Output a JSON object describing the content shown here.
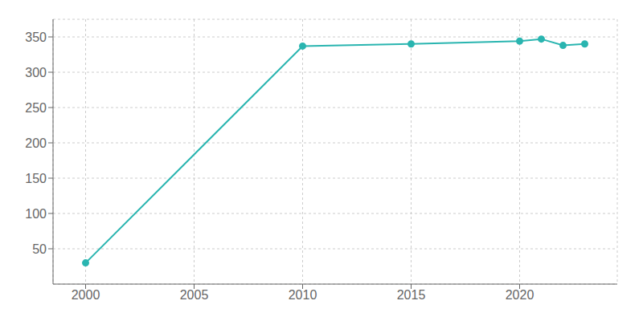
{
  "chart_data": {
    "type": "line",
    "x": [
      2000,
      2010,
      2015,
      2020,
      2021,
      2022,
      2023
    ],
    "values": [
      30,
      337,
      340,
      344,
      347,
      338,
      340
    ],
    "color": "#2ab5b0",
    "marker": "circle",
    "xlim": [
      1998.5,
      2024.5
    ],
    "xticks": [
      2000,
      2005,
      2010,
      2015,
      2020
    ],
    "ylim": [
      0,
      375
    ],
    "yticks": [
      50,
      100,
      150,
      200,
      250,
      300,
      350
    ],
    "grid": true
  }
}
